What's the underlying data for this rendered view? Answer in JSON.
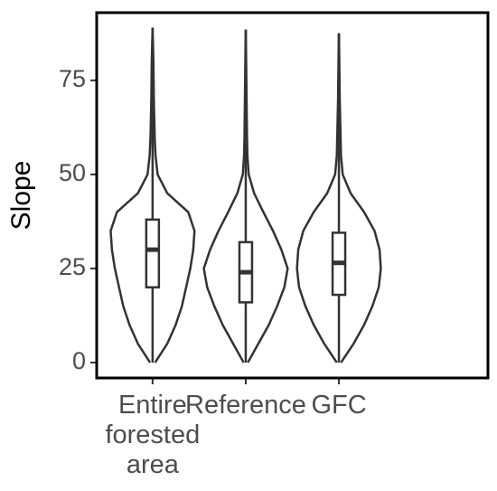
{
  "chart_data": {
    "type": "violin",
    "y_label": "Slope",
    "ylim": [
      -4.1,
      93
    ],
    "yticks": [
      0,
      25,
      50,
      75
    ],
    "color": "#333333",
    "series": [
      {
        "name": "Entire forested area",
        "box": {
          "whisker_low": 0,
          "q1": 20,
          "median": 30,
          "q3": 38,
          "whisker_high": 89
        },
        "density_y": [
          0,
          5,
          10,
          15,
          20,
          25,
          30,
          35,
          40,
          45,
          50,
          55,
          60,
          70,
          80,
          89
        ],
        "density_width": [
          0.06,
          0.35,
          0.55,
          0.7,
          0.8,
          0.9,
          0.97,
          1.0,
          0.85,
          0.35,
          0.12,
          0.07,
          0.05,
          0.03,
          0.02,
          0
        ]
      },
      {
        "name": "Reference",
        "box": {
          "whisker_low": 0,
          "q1": 16,
          "median": 24,
          "q3": 32,
          "whisker_high": 88.5
        },
        "density_y": [
          0,
          5,
          10,
          15,
          20,
          25,
          30,
          35,
          40,
          45,
          50,
          55,
          60,
          70,
          80,
          88.5
        ],
        "density_width": [
          0.05,
          0.3,
          0.55,
          0.75,
          0.92,
          1.0,
          0.85,
          0.65,
          0.42,
          0.2,
          0.07,
          0.04,
          0.03,
          0.02,
          0.01,
          0
        ]
      },
      {
        "name": "GFC",
        "box": {
          "whisker_low": 0,
          "q1": 18,
          "median": 26.5,
          "q3": 34.5,
          "whisker_high": 87.5
        },
        "density_y": [
          0,
          5,
          10,
          15,
          20,
          25,
          30,
          35,
          40,
          45,
          50,
          55,
          60,
          70,
          80,
          87.5
        ],
        "density_width": [
          0.05,
          0.35,
          0.6,
          0.8,
          0.95,
          1.0,
          0.97,
          0.85,
          0.6,
          0.28,
          0.09,
          0.05,
          0.04,
          0.02,
          0.01,
          0
        ]
      }
    ]
  }
}
